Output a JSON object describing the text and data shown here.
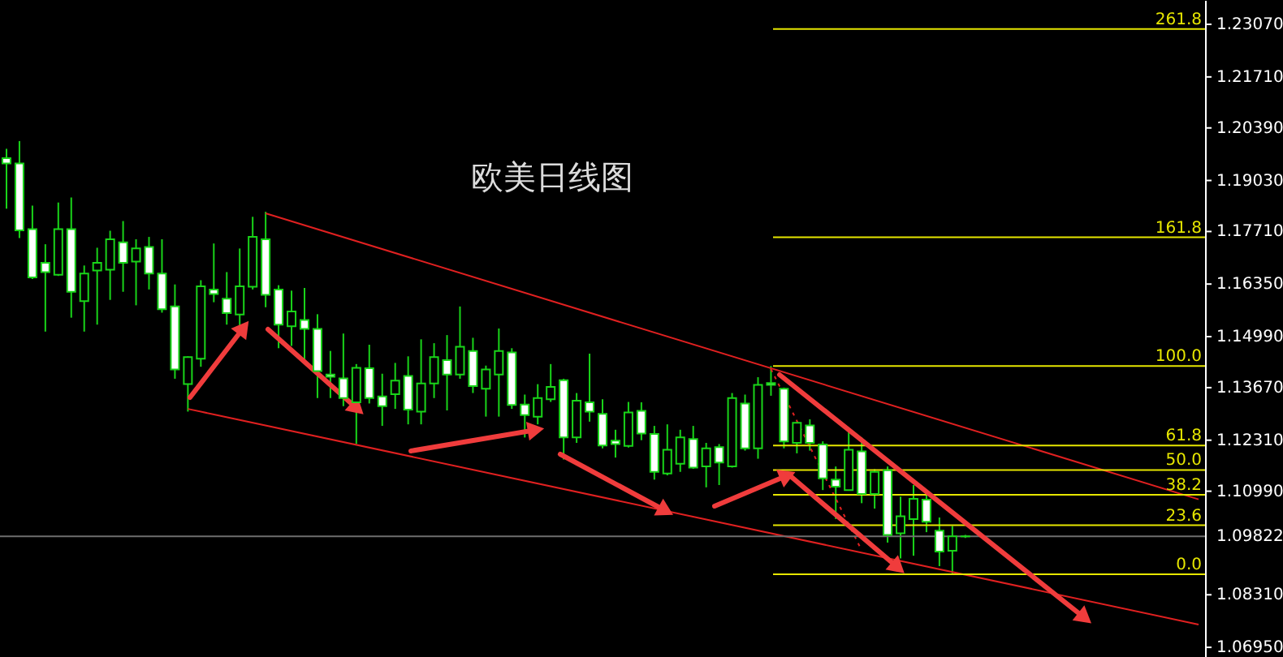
{
  "chart_data": {
    "type": "candlestick",
    "title": "欧美日线图",
    "color": "#19d419",
    "categories": [
      null,
      null,
      null,
      null,
      null,
      null,
      null,
      null,
      null,
      null,
      null,
      null,
      null,
      null,
      null,
      null,
      null,
      null,
      null,
      null,
      null,
      null,
      null,
      null,
      null,
      null,
      null,
      null,
      null,
      null,
      null,
      null,
      null,
      null,
      null,
      null,
      null,
      null,
      null,
      null,
      null,
      null,
      null,
      null,
      null,
      null,
      null,
      null,
      null,
      null,
      null,
      null,
      null,
      null,
      null,
      null,
      null,
      null,
      null,
      null,
      null,
      null,
      null,
      null,
      null,
      null,
      null,
      null,
      null,
      null,
      null,
      null,
      null,
      null,
      null,
      null,
      null,
      null,
      null,
      null,
      null,
      null,
      null,
      null,
      null,
      null,
      null,
      null,
      null,
      null,
      null,
      null,
      null
    ],
    "ohlc": [
      [
        1.1961,
        1.1985,
        1.183,
        1.1947
      ],
      [
        1.1947,
        1.2005,
        1.1754,
        1.1774
      ],
      [
        1.1777,
        1.1838,
        1.1648,
        1.1652
      ],
      [
        1.169,
        1.1738,
        1.1512,
        1.1666
      ],
      [
        1.1659,
        1.1846,
        1.1656,
        1.1777
      ],
      [
        1.1777,
        1.1859,
        1.1548,
        1.1615
      ],
      [
        1.1591,
        1.1683,
        1.1512,
        1.1662
      ],
      [
        1.167,
        1.1729,
        1.153,
        1.169
      ],
      [
        1.1672,
        1.1773,
        1.1594,
        1.1751
      ],
      [
        1.1743,
        1.1798,
        1.1615,
        1.169
      ],
      [
        1.1693,
        1.1751,
        1.158,
        1.1727
      ],
      [
        1.1731,
        1.1757,
        1.1621,
        1.1662
      ],
      [
        1.1662,
        1.1751,
        1.1561,
        1.157
      ],
      [
        1.1577,
        1.1634,
        1.139,
        1.1414
      ],
      [
        1.1376,
        1.1448,
        1.1305,
        1.1446
      ],
      [
        1.1442,
        1.1645,
        1.1421,
        1.1629
      ],
      [
        1.1621,
        1.174,
        1.1588,
        1.1609
      ],
      [
        1.1597,
        1.1666,
        1.153,
        1.156
      ],
      [
        1.1556,
        1.1727,
        1.1526,
        1.1629
      ],
      [
        1.1628,
        1.1809,
        1.1621,
        1.1757
      ],
      [
        1.1751,
        1.1822,
        1.1575,
        1.1607
      ],
      [
        1.1621,
        1.1632,
        1.1469,
        1.153
      ],
      [
        1.1526,
        1.1618,
        1.1475,
        1.1564
      ],
      [
        1.1542,
        1.1625,
        1.1435,
        1.1519
      ],
      [
        1.1519,
        1.1557,
        1.134,
        1.141
      ],
      [
        1.1401,
        1.1462,
        1.134,
        1.1395
      ],
      [
        1.1391,
        1.1507,
        1.1319,
        1.134
      ],
      [
        1.1329,
        1.1428,
        1.1221,
        1.1418
      ],
      [
        1.1417,
        1.1478,
        1.1326,
        1.134
      ],
      [
        1.1344,
        1.1403,
        1.1268,
        1.1319
      ],
      [
        1.135,
        1.1431,
        1.1312,
        1.1385
      ],
      [
        1.1397,
        1.1448,
        1.1272,
        1.131
      ],
      [
        1.1305,
        1.1492,
        1.1272,
        1.1378
      ],
      [
        1.1378,
        1.1482,
        1.134,
        1.1446
      ],
      [
        1.1438,
        1.1503,
        1.1308,
        1.1401
      ],
      [
        1.1401,
        1.1577,
        1.139,
        1.1473
      ],
      [
        1.1462,
        1.1496,
        1.1353,
        1.1371
      ],
      [
        1.1364,
        1.1424,
        1.1292,
        1.1414
      ],
      [
        1.1401,
        1.152,
        1.1292,
        1.1462
      ],
      [
        1.1458,
        1.1469,
        1.1312,
        1.1322
      ],
      [
        1.1323,
        1.1349,
        1.1238,
        1.1296
      ],
      [
        1.1292,
        1.1376,
        1.1272,
        1.134
      ],
      [
        1.1337,
        1.1428,
        1.133,
        1.1369
      ],
      [
        1.1386,
        1.139,
        1.1181,
        1.1238
      ],
      [
        1.1238,
        1.1353,
        1.1224,
        1.1333
      ],
      [
        1.1329,
        1.1455,
        1.1279,
        1.1305
      ],
      [
        1.1299,
        1.1337,
        1.121,
        1.1217
      ],
      [
        1.123,
        1.1258,
        1.1186,
        1.1221
      ],
      [
        1.1216,
        1.133,
        1.1212,
        1.1303
      ],
      [
        1.1307,
        1.1329,
        1.1231,
        1.1248
      ],
      [
        1.1247,
        1.1268,
        1.1129,
        1.1149
      ],
      [
        1.1145,
        1.1272,
        1.114,
        1.1206
      ],
      [
        1.117,
        1.1258,
        1.1149,
        1.1238
      ],
      [
        1.1234,
        1.1268,
        1.1157,
        1.116
      ],
      [
        1.1163,
        1.1224,
        1.1109,
        1.121
      ],
      [
        1.1213,
        1.1221,
        1.1115,
        1.1173
      ],
      [
        1.1163,
        1.1353,
        1.116,
        1.134
      ],
      [
        1.1326,
        1.1349,
        1.1204,
        1.121
      ],
      [
        1.121,
        1.1394,
        1.1183,
        1.1374
      ],
      [
        1.1379,
        1.1423,
        1.1346,
        1.1374
      ],
      [
        1.1364,
        1.1367,
        1.121,
        1.1228
      ],
      [
        1.1224,
        1.1279,
        1.1197,
        1.1276
      ],
      [
        1.1269,
        1.1285,
        1.1204,
        1.1224
      ],
      [
        1.122,
        1.1228,
        1.1102,
        1.1132
      ],
      [
        1.1129,
        1.1163,
        1.1027,
        1.1111
      ],
      [
        1.1102,
        1.1254,
        1.1102,
        1.1206
      ],
      [
        1.1202,
        1.1238,
        1.1068,
        1.1092
      ],
      [
        1.1092,
        1.1156,
        1.1054,
        1.1149
      ],
      [
        1.1153,
        1.1163,
        1.0966,
        1.0986
      ],
      [
        1.099,
        1.1085,
        1.0925,
        1.1034
      ],
      [
        1.1027,
        1.1115,
        1.0932,
        1.1079
      ],
      [
        1.1077,
        1.1091,
        1.0993,
        1.102
      ],
      [
        1.0997,
        1.1031,
        1.0905,
        1.0943
      ],
      [
        1.0945,
        1.1009,
        1.0884,
        1.0982
      ],
      [
        1.0982,
        1.0986,
        1.0978,
        1.09822
      ],
      null,
      null,
      null,
      null,
      null,
      null,
      null,
      null,
      null,
      null,
      null,
      null,
      null,
      null,
      null,
      null,
      null,
      null
    ],
    "colors": [
      "#ffffff",
      "#ffffff",
      "#ffffff",
      "#ffffff",
      "#000000",
      "#ffffff",
      "#000000",
      "#000000",
      "#000000",
      "#ffffff",
      "#000000",
      "#ffffff",
      "#ffffff",
      "#ffffff",
      "#000000",
      "#000000",
      "#ffffff",
      "#ffffff",
      "#000000",
      "#000000",
      "#ffffff",
      "#ffffff",
      "#000000",
      "#ffffff",
      "#ffffff",
      "#ffffff",
      "#ffffff",
      "#000000",
      "#ffffff",
      "#ffffff",
      "#000000",
      "#ffffff",
      "#000000",
      "#000000",
      "#ffffff",
      "#000000",
      "#ffffff",
      "#000000",
      "#000000",
      "#ffffff",
      "#ffffff",
      "#000000",
      "#000000",
      "#ffffff",
      "#000000",
      "#ffffff",
      "#ffffff",
      "#ffffff",
      "#000000",
      "#ffffff",
      "#ffffff",
      "#000000",
      "#000000",
      "#ffffff",
      "#000000",
      "#ffffff",
      "#000000",
      "#ffffff",
      "#000000",
      "#ffffff",
      "#ffffff",
      "#000000",
      "#ffffff",
      "#ffffff",
      "#ffffff",
      "#000000",
      "#ffffff",
      "#000000",
      "#ffffff",
      "#000000",
      "#000000",
      "#ffffff",
      "#ffffff",
      "#000000",
      "#000000",
      null,
      null,
      null,
      null,
      null,
      null,
      null,
      null,
      null,
      null,
      null,
      null,
      null,
      null,
      null,
      null,
      null,
      null
    ],
    "series": [
      {
        "type": "line",
        "color": "#e02020",
        "line_style": "solid",
        "values": [
          null,
          null,
          null,
          null,
          null,
          null,
          null,
          null,
          null,
          null,
          null,
          null,
          null,
          null,
          null,
          null,
          null,
          null,
          null,
          null,
          1.1818,
          null,
          null,
          null,
          null,
          null,
          null,
          null,
          null,
          null,
          null,
          null,
          null,
          null,
          null,
          null,
          null,
          null,
          null,
          null,
          null,
          null,
          null,
          null,
          null,
          null,
          null,
          null,
          null,
          null,
          null,
          null,
          null,
          null,
          null,
          null,
          null,
          null,
          null,
          null,
          null,
          null,
          null,
          null,
          null,
          null,
          null,
          null,
          null,
          null,
          null,
          null,
          null,
          null,
          null,
          null,
          null,
          null,
          null,
          null,
          null,
          null,
          null,
          null,
          null,
          null,
          null,
          null,
          null,
          null,
          null,
          null,
          1.1078
        ]
      },
      {
        "type": "line",
        "color": "#e02020",
        "line_style": "solid",
        "values": [
          null,
          null,
          null,
          null,
          null,
          null,
          null,
          null,
          null,
          null,
          null,
          null,
          null,
          null,
          1.1312,
          null,
          null,
          null,
          null,
          null,
          null,
          null,
          null,
          null,
          null,
          null,
          null,
          null,
          null,
          null,
          null,
          null,
          null,
          null,
          null,
          null,
          null,
          null,
          null,
          null,
          null,
          null,
          null,
          null,
          null,
          null,
          null,
          null,
          null,
          null,
          null,
          null,
          null,
          null,
          null,
          null,
          null,
          null,
          null,
          null,
          null,
          null,
          null,
          null,
          null,
          null,
          null,
          null,
          null,
          null,
          null,
          null,
          null,
          null,
          null,
          null,
          null,
          null,
          null,
          null,
          null,
          null,
          null,
          null,
          null,
          null,
          null,
          null,
          null,
          null,
          null,
          null,
          1.0754
        ]
      },
      {
        "type": "line",
        "color": "#e02020",
        "line_style": "dotted",
        "values": [
          null,
          null,
          null,
          null,
          null,
          null,
          null,
          null,
          null,
          null,
          null,
          null,
          null,
          null,
          null,
          null,
          null,
          null,
          null,
          null,
          null,
          null,
          null,
          null,
          null,
          null,
          null,
          null,
          null,
          null,
          null,
          null,
          null,
          null,
          null,
          null,
          null,
          null,
          null,
          null,
          null,
          null,
          null,
          null,
          null,
          null,
          null,
          null,
          null,
          null,
          null,
          null,
          null,
          null,
          null,
          null,
          null,
          null,
          null,
          1.1415,
          null,
          null,
          null,
          null,
          null,
          null,
          1.0946,
          null,
          null,
          null,
          null,
          null,
          null,
          null,
          null,
          null,
          null,
          null,
          null,
          null,
          null,
          null,
          null,
          null,
          null,
          null,
          null,
          null,
          null,
          null,
          null,
          null,
          null
        ]
      }
    ],
    "ref_lines": [
      {
        "axis": "y",
        "value": 1.2295,
        "color": "#e6e600"
      },
      {
        "axis": "y",
        "value": 1.1756,
        "color": "#e6e600"
      },
      {
        "axis": "y",
        "value": 1.1423,
        "color": "#e6e600"
      },
      {
        "axis": "y",
        "value": 1.1217,
        "color": "#e6e600"
      },
      {
        "axis": "y",
        "value": 1.1154,
        "color": "#e6e600"
      },
      {
        "axis": "y",
        "value": 1.109,
        "color": "#e6e600"
      },
      {
        "axis": "y",
        "value": 1.1011,
        "color": "#e6e600"
      },
      {
        "axis": "y",
        "value": 1.0884,
        "color": "#e6e600"
      },
      {
        "axis": "y",
        "value": 1.09822,
        "label": "1.09822",
        "color": "#6e6e6e"
      }
    ],
    "annotations": [
      {
        "text": "261.8",
        "y": 1.2295
      },
      {
        "text": "161.8",
        "y": 1.1756
      },
      {
        "text": "100.0",
        "y": 1.1423
      },
      {
        "text": "61.8",
        "y": 1.1217
      },
      {
        "text": "50.0",
        "y": 1.1154
      },
      {
        "text": "38.2",
        "y": 1.109
      },
      {
        "text": "23.6",
        "y": 1.1011
      },
      {
        "text": "0.0",
        "y": 1.0884
      }
    ],
    "ylim": [
      1.067,
      1.237
    ],
    "yticks": [
      {
        "value": 1.2307,
        "label": "1.23070"
      },
      {
        "value": 1.2171,
        "label": "1.21710"
      },
      {
        "value": 1.2039,
        "label": "1.20390"
      },
      {
        "value": 1.1903,
        "label": "1.19030"
      },
      {
        "value": 1.1771,
        "label": "1.17710"
      },
      {
        "value": 1.1635,
        "label": "1.16350"
      },
      {
        "value": 1.1499,
        "label": "1.14990"
      },
      {
        "value": 1.1367,
        "label": "1.13670"
      },
      {
        "value": 1.1231,
        "label": "1.12310"
      },
      {
        "value": 1.1099,
        "label": "1.10990"
      },
      {
        "value": 1.0831,
        "label": "1.08310"
      },
      {
        "value": 1.0695,
        "label": "1.06950"
      }
    ],
    "grid": false,
    "tick_labels": "y"
  }
}
